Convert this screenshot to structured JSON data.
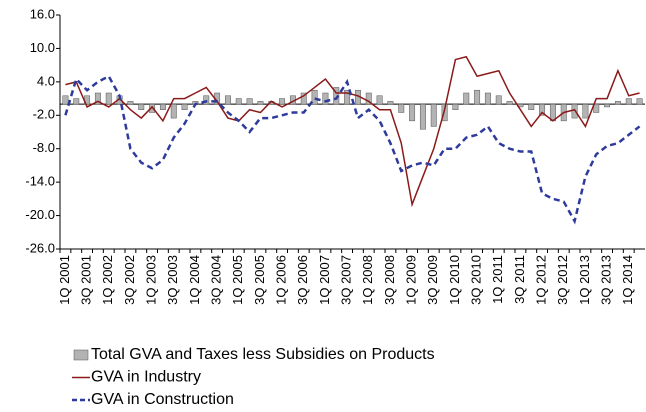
{
  "chart_data": {
    "type": "bar+line",
    "categories": [
      "1Q 2001",
      null,
      "3Q 2001",
      null,
      "1Q 2002",
      null,
      "3Q 2002",
      null,
      "1Q 2003",
      null,
      "3Q 2003",
      null,
      "1Q 2004",
      null,
      "3Q 2004",
      null,
      "1Q 2005",
      null,
      "3Q 2005",
      null,
      "1Q 2006",
      null,
      "3Q 2006",
      null,
      "1Q 2007",
      null,
      "3Q 2007",
      null,
      "1Q 2008",
      null,
      "3Q 2008",
      null,
      "1Q 2009",
      null,
      "3Q 2009",
      null,
      "1Q 2010",
      null,
      "3Q 2010",
      null,
      "1Q 2011",
      null,
      "3Q 2011",
      null,
      "1Q 2012",
      null,
      "3Q 2012",
      null,
      "1Q 2013",
      null,
      "3Q 2013",
      null,
      "1Q 2014",
      null
    ],
    "series": [
      {
        "name": "Total GVA and Taxes less Subsidies on Products",
        "kind": "bar",
        "color": "#b3b3b3",
        "values": [
          1.5,
          1.0,
          1.5,
          2.0,
          2.0,
          1.5,
          0.5,
          -1.0,
          -1.5,
          -1.0,
          -2.5,
          -1.0,
          0.5,
          1.5,
          2.0,
          1.5,
          1.0,
          1.0,
          0.5,
          0.5,
          1.0,
          1.5,
          2.0,
          2.5,
          2.0,
          3.0,
          2.5,
          2.5,
          2.0,
          1.5,
          0.5,
          -1.5,
          -3.0,
          -4.5,
          -4.0,
          -3.0,
          -1.0,
          2.0,
          2.5,
          2.0,
          1.5,
          0.5,
          -0.5,
          -1.0,
          -2.0,
          -3.0,
          -3.0,
          -2.5,
          -2.5,
          -1.5,
          -0.5,
          0.5,
          1.0,
          1.0
        ]
      },
      {
        "name": "GVA in Industry",
        "kind": "line",
        "color": "#8b1a1a",
        "dash": false,
        "values": [
          3.5,
          4.0,
          -0.5,
          0.5,
          -0.5,
          1.0,
          -1.0,
          -2.5,
          -0.5,
          -3.0,
          1.0,
          1.0,
          2.0,
          3.0,
          0.5,
          -2.5,
          -3.0,
          -1.0,
          -1.5,
          0.5,
          -0.5,
          0.5,
          1.5,
          3.0,
          4.5,
          2.0,
          2.0,
          1.5,
          0.5,
          -1.0,
          -1.0,
          -7.0,
          -18.0,
          -13.0,
          -8.0,
          -1.0,
          8.0,
          8.5,
          5.0,
          5.5,
          6.0,
          2.0,
          -1.0,
          -4.0,
          -1.5,
          -3.0,
          -1.5,
          -1.0,
          -4.0,
          1.0,
          1.0,
          6.0,
          1.5,
          2.0
        ]
      },
      {
        "name": "GVA in Construction",
        "kind": "line",
        "color": "#2e3b9c",
        "dash": true,
        "values": [
          -2.0,
          4.5,
          2.5,
          4.0,
          5.0,
          1.5,
          -8.0,
          -10.5,
          -11.5,
          -10.0,
          -6.0,
          -3.5,
          0.0,
          0.5,
          0.5,
          -1.5,
          -3.0,
          -5.0,
          -2.5,
          -2.5,
          -2.0,
          -1.5,
          -1.5,
          1.0,
          0.5,
          1.0,
          4.0,
          -2.5,
          -1.0,
          -3.0,
          -7.0,
          -12.0,
          -11.0,
          -10.5,
          -11.0,
          -8.0,
          -8.0,
          -6.0,
          -5.5,
          -4.0,
          -7.0,
          -8.0,
          -8.5,
          -8.5,
          -16.0,
          -17.0,
          -17.5,
          -21.0,
          -13.0,
          -9.0,
          -7.5,
          -7.0,
          -5.5,
          -4.0
        ]
      }
    ],
    "ylim": [
      -26,
      16
    ],
    "yticks": [
      {
        "value": -26,
        "label": "-26.0"
      },
      {
        "value": -20,
        "label": "-20.0"
      },
      {
        "value": -14,
        "label": "-14.0"
      },
      {
        "value": -8,
        "label": "-8.0"
      },
      {
        "value": -2,
        "label": "-2.0"
      },
      {
        "value": 4,
        "label": "4.0"
      },
      {
        "value": 10,
        "label": "10.0"
      },
      {
        "value": 16,
        "label": "16.0"
      }
    ],
    "grid": false,
    "legend": "bottom"
  }
}
